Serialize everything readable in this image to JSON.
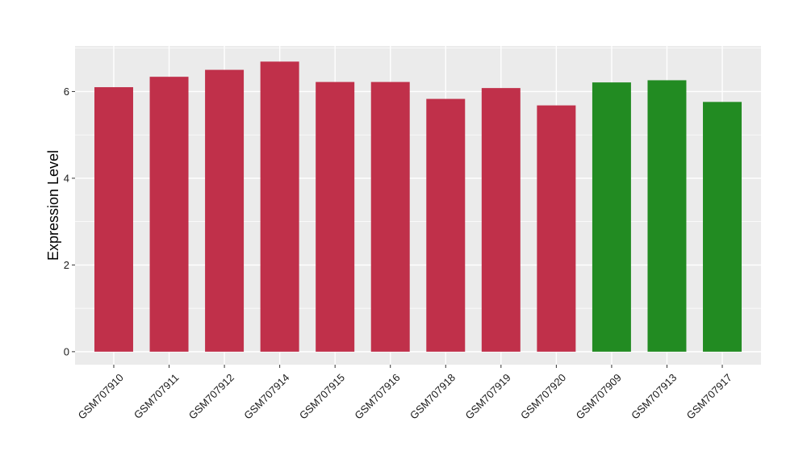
{
  "chart_data": {
    "type": "bar",
    "title": "",
    "xlabel": "",
    "ylabel": "Expression Level",
    "ylim": [
      -0.3,
      7.05
    ],
    "yticks": [
      0,
      2,
      4,
      6
    ],
    "grid": true,
    "categories": [
      "GSM707910",
      "GSM707911",
      "GSM707912",
      "GSM707914",
      "GSM707915",
      "GSM707916",
      "GSM707918",
      "GSM707919",
      "GSM707920",
      "GSM707909",
      "GSM707913",
      "GSM707917"
    ],
    "values": [
      6.1,
      6.34,
      6.5,
      6.69,
      6.22,
      6.22,
      5.83,
      6.08,
      5.68,
      6.21,
      6.26,
      5.76
    ],
    "bar_colors": [
      "#c0304a",
      "#c0304a",
      "#c0304a",
      "#c0304a",
      "#c0304a",
      "#c0304a",
      "#c0304a",
      "#c0304a",
      "#c0304a",
      "#228b22",
      "#228b22",
      "#228b22"
    ],
    "panel_background": "#ebebeb",
    "grid_color": "#ffffff"
  }
}
